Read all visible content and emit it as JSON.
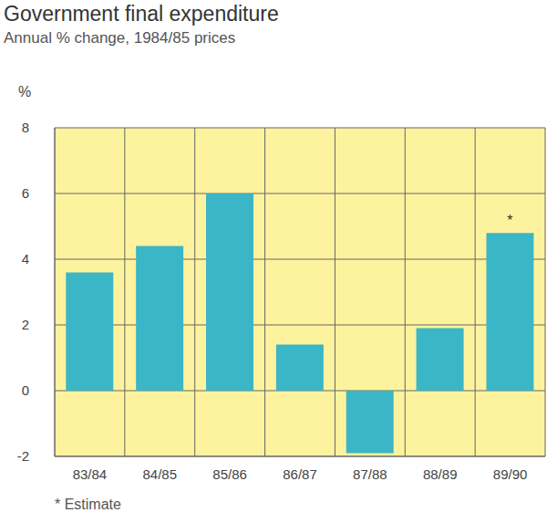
{
  "chart_data": {
    "type": "bar",
    "title": "Government final expenditure",
    "subtitle": "Annual % change, 1984/85 prices",
    "y_label": "%",
    "categories": [
      "83/84",
      "84/85",
      "85/86",
      "86/87",
      "87/88",
      "88/89",
      "89/90"
    ],
    "values": [
      3.6,
      4.4,
      6.0,
      1.4,
      -1.9,
      1.9,
      4.8
    ],
    "color": "#3bb6c6",
    "ylim": [
      -2,
      8
    ],
    "yticks": [
      -2,
      0,
      2,
      4,
      6,
      8
    ],
    "grid": true,
    "annotations": [
      {
        "category": "89/90",
        "text": "*"
      }
    ],
    "footnote": "* Estimate"
  }
}
